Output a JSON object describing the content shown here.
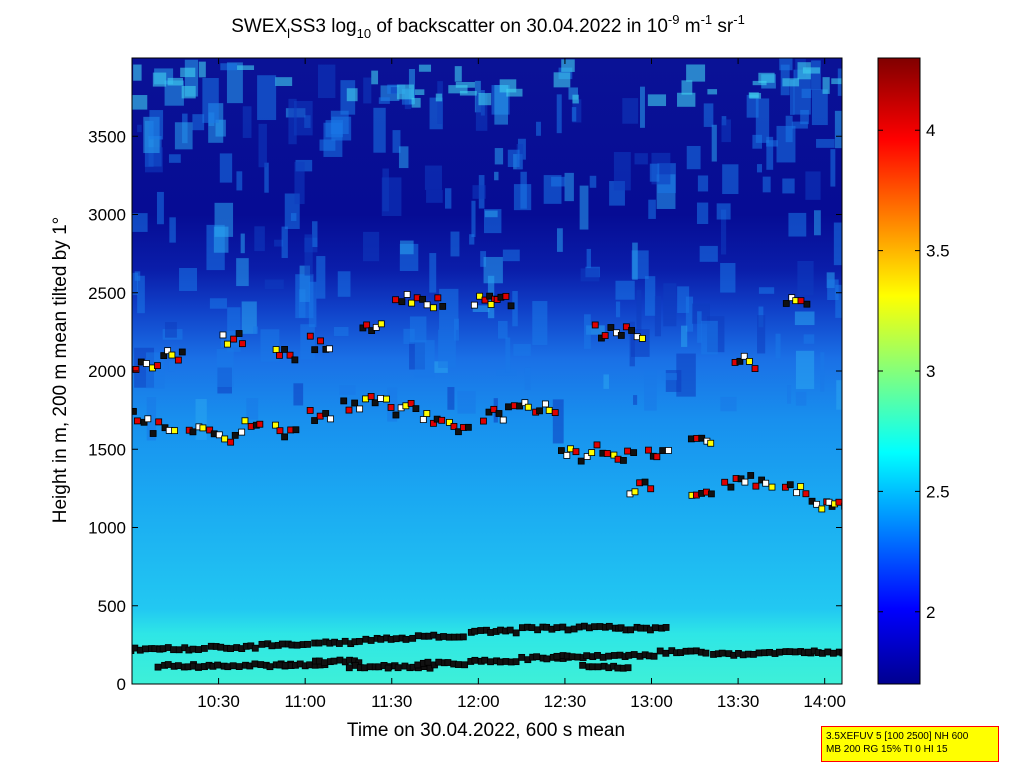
{
  "chart_data": {
    "type": "heatmap",
    "title": {
      "prefix": "SWEX",
      "sub1": "l",
      "mid": "SS3 log",
      "sub2": "10",
      "suffix1": " of backscatter on 30.04.2022 in 10",
      "sup1": "-9",
      "suffix2": " m",
      "sup2": "-1",
      "suffix3": " sr",
      "sup3": "-1"
    },
    "xlabel": "Time on 30.04.2022, 600 s mean",
    "ylabel": "Height in m, 200 m mean tilted by 1°",
    "x_ticks": [
      "10:30",
      "11:00",
      "11:30",
      "12:00",
      "12:30",
      "13:00",
      "13:30",
      "14:00"
    ],
    "y_ticks": [
      0,
      500,
      1000,
      1500,
      2000,
      2500,
      3000,
      3500
    ],
    "xlim_hours": [
      10.0,
      14.1
    ],
    "ylim": [
      0,
      4000
    ],
    "colorbar": {
      "ticks": [
        2,
        2.5,
        3,
        3.5,
        4
      ],
      "range": [
        1.7,
        4.3
      ],
      "colormap": "jet"
    },
    "series": [
      {
        "marker": "square",
        "description_layers": "detected layer heights",
        "points_hours_m": [
          [
            10.05,
            220
          ],
          [
            10.3,
            225
          ],
          [
            10.6,
            235
          ],
          [
            10.9,
            250
          ],
          [
            11.2,
            265
          ],
          [
            11.5,
            285
          ],
          [
            11.8,
            305
          ],
          [
            12.1,
            335
          ],
          [
            12.4,
            355
          ],
          [
            12.7,
            360
          ],
          [
            12.97,
            355
          ],
          [
            10.3,
            115
          ],
          [
            10.5,
            115
          ],
          [
            10.8,
            120
          ],
          [
            11.0,
            125
          ],
          [
            11.2,
            145
          ],
          [
            11.4,
            110
          ],
          [
            11.6,
            110
          ],
          [
            11.8,
            130
          ],
          [
            12.1,
            145
          ],
          [
            12.4,
            165
          ],
          [
            12.6,
            175
          ],
          [
            12.75,
            110
          ],
          [
            12.9,
            180
          ],
          [
            13.2,
            205
          ],
          [
            13.5,
            190
          ],
          [
            13.8,
            200
          ],
          [
            14.05,
            205
          ],
          [
            10.05,
            1700
          ],
          [
            10.2,
            1640
          ],
          [
            10.4,
            1600
          ],
          [
            10.55,
            1580
          ],
          [
            10.7,
            1650
          ],
          [
            10.9,
            1620
          ],
          [
            11.1,
            1720
          ],
          [
            11.3,
            1790
          ],
          [
            11.45,
            1810
          ],
          [
            11.6,
            1750
          ],
          [
            11.75,
            1700
          ],
          [
            11.9,
            1640
          ],
          [
            12.1,
            1720
          ],
          [
            12.25,
            1780
          ],
          [
            12.4,
            1750
          ],
          [
            12.55,
            1460
          ],
          [
            12.7,
            1490
          ],
          [
            12.85,
            1450
          ],
          [
            13.05,
            1460
          ],
          [
            13.3,
            1540
          ],
          [
            10.1,
            2050
          ],
          [
            10.25,
            2100
          ],
          [
            10.6,
            2200
          ],
          [
            10.9,
            2100
          ],
          [
            11.1,
            2180
          ],
          [
            11.4,
            2270
          ],
          [
            11.6,
            2450
          ],
          [
            11.75,
            2440
          ],
          [
            12.05,
            2440
          ],
          [
            12.15,
            2440
          ],
          [
            12.75,
            2250
          ],
          [
            12.9,
            2240
          ],
          [
            13.55,
            2050
          ],
          [
            13.85,
            2460
          ],
          [
            12.95,
            1250
          ],
          [
            13.3,
            1200
          ],
          [
            13.5,
            1280
          ],
          [
            13.65,
            1300
          ],
          [
            13.85,
            1240
          ],
          [
            14.0,
            1160
          ],
          [
            14.1,
            1120
          ]
        ]
      }
    ]
  },
  "info_box": {
    "line1": "3.5XEFUV 5 [100 2500] NH 600",
    "line2": "MB 200 RG 15% TI 0 HI 15"
  }
}
